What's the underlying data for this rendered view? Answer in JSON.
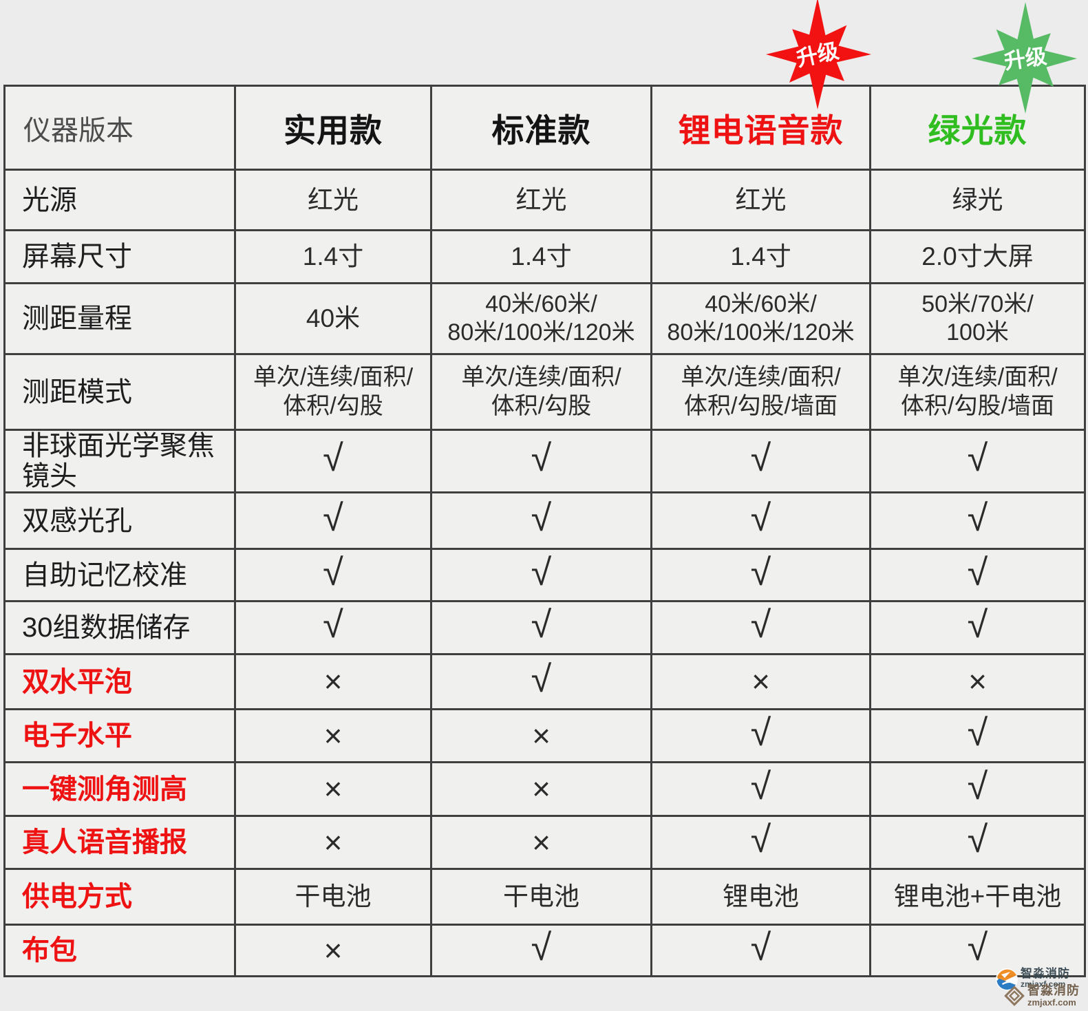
{
  "badges": {
    "red": {
      "label": "升级",
      "color": "#f21212"
    },
    "green": {
      "label": "升级",
      "color": "#57ba64"
    }
  },
  "colors": {
    "red": "#ee1212",
    "green_text": "#2fbd20",
    "green_check": "#2aa55c",
    "black": "#2b2b2b"
  },
  "symbols": {
    "check": "√",
    "cross": "×"
  },
  "table": {
    "corner_label": "仪器版本",
    "columns": [
      "实用款",
      "标准款",
      "锂电语音款",
      "绿光款"
    ],
    "rows": [
      {
        "label": "光源",
        "label_color": "k",
        "cells": [
          {
            "type": "text",
            "text": "红光",
            "color": "r"
          },
          {
            "type": "text",
            "text": "红光",
            "color": "r"
          },
          {
            "type": "text",
            "text": "红光",
            "color": "r"
          },
          {
            "type": "text",
            "text": "绿光",
            "color": "gb"
          }
        ]
      },
      {
        "label": "屏幕尺寸",
        "label_color": "k",
        "cells": [
          {
            "type": "text",
            "text": "1.4寸",
            "color": "k"
          },
          {
            "type": "text",
            "text": "1.4寸",
            "color": "k"
          },
          {
            "type": "text",
            "text": "1.4寸",
            "color": "k"
          },
          {
            "type": "text",
            "text": "2.0寸大屏",
            "color": "gb"
          }
        ]
      },
      {
        "label": "测距量程",
        "label_color": "k",
        "cells": [
          {
            "type": "text",
            "text": "40米",
            "color": "k"
          },
          {
            "type": "text",
            "text": "40米/60米/\n80米/100米/120米",
            "color": "k"
          },
          {
            "type": "text",
            "text": "40米/60米/\n80米/100米/120米",
            "color": "k"
          },
          {
            "type": "text",
            "text": "50米/70米/\n100米",
            "color": "k"
          }
        ]
      },
      {
        "label": "测距模式",
        "label_color": "k",
        "cells": [
          {
            "type": "text",
            "text": "单次/连续/面积/\n体积/勾股",
            "color": "k"
          },
          {
            "type": "text",
            "text": "单次/连续/面积/\n体积/勾股",
            "color": "k"
          },
          {
            "type": "text",
            "text": "单次/连续/面积/\n体积/勾股/墙面",
            "color": "k"
          },
          {
            "type": "text",
            "text": "单次/连续/面积/\n体积/勾股/墙面",
            "color": "k"
          }
        ]
      },
      {
        "label": "非球面光学聚焦镜头",
        "label_color": "k",
        "cells": [
          {
            "type": "check",
            "color": "k"
          },
          {
            "type": "check",
            "color": "k"
          },
          {
            "type": "check",
            "color": "k"
          },
          {
            "type": "check",
            "color": "k"
          }
        ]
      },
      {
        "label": "双感光孔",
        "label_color": "k",
        "cells": [
          {
            "type": "check",
            "color": "k"
          },
          {
            "type": "check",
            "color": "k"
          },
          {
            "type": "check",
            "color": "k"
          },
          {
            "type": "check",
            "color": "k"
          }
        ]
      },
      {
        "label": "自助记忆校准",
        "label_color": "k",
        "cells": [
          {
            "type": "check",
            "color": "k"
          },
          {
            "type": "check",
            "color": "k"
          },
          {
            "type": "check",
            "color": "k"
          },
          {
            "type": "check",
            "color": "k"
          }
        ]
      },
      {
        "label": "30组数据储存",
        "label_color": "k",
        "cells": [
          {
            "type": "check",
            "color": "k"
          },
          {
            "type": "check",
            "color": "k"
          },
          {
            "type": "check",
            "color": "k"
          },
          {
            "type": "check",
            "color": "k"
          }
        ]
      },
      {
        "label": "双水平泡",
        "label_color": "r",
        "cells": [
          {
            "type": "cross",
            "color": "k"
          },
          {
            "type": "check",
            "color": "r"
          },
          {
            "type": "cross",
            "color": "k"
          },
          {
            "type": "cross",
            "color": "k"
          }
        ]
      },
      {
        "label": "电子水平",
        "label_color": "r",
        "cells": [
          {
            "type": "cross",
            "color": "k"
          },
          {
            "type": "cross",
            "color": "k"
          },
          {
            "type": "check",
            "color": "r"
          },
          {
            "type": "check",
            "color": "g"
          }
        ]
      },
      {
        "label": "一键测角测高",
        "label_color": "r",
        "cells": [
          {
            "type": "cross",
            "color": "k"
          },
          {
            "type": "cross",
            "color": "k"
          },
          {
            "type": "check",
            "color": "r"
          },
          {
            "type": "check",
            "color": "g"
          }
        ]
      },
      {
        "label": "真人语音播报",
        "label_color": "r",
        "cells": [
          {
            "type": "cross",
            "color": "k"
          },
          {
            "type": "cross",
            "color": "k"
          },
          {
            "type": "check",
            "color": "r"
          },
          {
            "type": "check",
            "color": "g"
          }
        ]
      },
      {
        "label": "供电方式",
        "label_color": "r",
        "cells": [
          {
            "type": "text",
            "text": "干电池",
            "color": "k"
          },
          {
            "type": "text",
            "text": "干电池",
            "color": "k"
          },
          {
            "type": "text",
            "text": "锂电池",
            "color": "r"
          },
          {
            "type": "text",
            "text": "锂电池+干电池",
            "color": "gb"
          }
        ]
      },
      {
        "label": "布包",
        "label_color": "r",
        "cells": [
          {
            "type": "cross",
            "color": "k"
          },
          {
            "type": "check",
            "color": "r"
          },
          {
            "type": "check",
            "color": "r"
          },
          {
            "type": "check",
            "color": "g"
          }
        ]
      }
    ]
  },
  "watermark": {
    "line1": {
      "name": "智淼消防",
      "site": "zmjaxf.com"
    },
    "line2": {
      "name": "智淼消防",
      "site": "zmjaxf.com"
    }
  }
}
